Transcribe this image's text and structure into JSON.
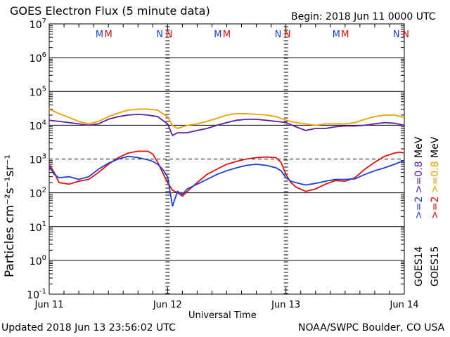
{
  "header": {
    "title": "GOES Electron Flux (5 minute data)",
    "begin": "Begin: 2018 Jun 11 0000 UTC"
  },
  "footer": {
    "updated": "Updated 2018 Jun 13 23:56:02 UTC",
    "credit": "NOAA/SWPC Boulder, CO USA"
  },
  "chart_data": {
    "type": "line",
    "title": "GOES Electron Flux (5 minute data)",
    "xlabel": "Universal Time",
    "ylabel": "Particles cm⁻²s⁻¹sr⁻¹",
    "y_scale": "log",
    "ylim": [
      0.1,
      10000000
    ],
    "xlim": [
      0,
      72
    ],
    "x_unit": "hours since 2018 Jun 11 0000 UTC",
    "x_ticks": [
      {
        "x": 0,
        "label": "Jun 11"
      },
      {
        "x": 24,
        "label": "Jun 12"
      },
      {
        "x": 48,
        "label": "Jun 13"
      },
      {
        "x": 72,
        "label": "Jun 14"
      }
    ],
    "y_ticks": [
      {
        "v": 10000000,
        "base": "10",
        "exp": "7"
      },
      {
        "v": 1000000,
        "base": "10",
        "exp": "6"
      },
      {
        "v": 100000,
        "base": "10",
        "exp": "5"
      },
      {
        "v": 10000,
        "base": "10",
        "exp": "4"
      },
      {
        "v": 1000,
        "base": "10",
        "exp": "3"
      },
      {
        "v": 100,
        "base": "10",
        "exp": "2"
      },
      {
        "v": 10,
        "base": "10",
        "exp": "1"
      },
      {
        "v": 1,
        "base": "10",
        "exp": "0"
      },
      {
        "v": 0.1,
        "base": "10",
        "exp": "-1"
      }
    ],
    "threshold": {
      "value": 1000,
      "style": "dashed"
    },
    "grid_lines": [
      100,
      10000,
      100000,
      1000000,
      10,
      1
    ],
    "markers": [
      {
        "x": 10.2,
        "label": "M",
        "color": "#1f3fd0"
      },
      {
        "x": 12.0,
        "label": "M",
        "color": "#e01010"
      },
      {
        "x": 22.4,
        "label": "N",
        "color": "#1f3fd0"
      },
      {
        "x": 24.3,
        "label": "N",
        "color": "#e01010"
      },
      {
        "x": 34.2,
        "label": "M",
        "color": "#1f3fd0"
      },
      {
        "x": 36.0,
        "label": "M",
        "color": "#e01010"
      },
      {
        "x": 46.4,
        "label": "N",
        "color": "#1f3fd0"
      },
      {
        "x": 48.3,
        "label": "N",
        "color": "#e01010"
      },
      {
        "x": 58.2,
        "label": "M",
        "color": "#1f3fd0"
      },
      {
        "x": 60.0,
        "label": "M",
        "color": "#e01010"
      },
      {
        "x": 70.4,
        "label": "N",
        "color": "#1f3fd0"
      },
      {
        "x": 72.3,
        "label": "N",
        "color": "#e01010"
      }
    ],
    "series": [
      {
        "name": ">=0.8 MeV GOES15",
        "color": "#f0a000",
        "x": [
          0,
          2,
          4,
          6,
          8,
          10,
          12,
          14,
          16,
          18,
          20,
          22,
          23,
          24,
          25,
          26,
          28,
          30,
          32,
          34,
          36,
          38,
          40,
          42,
          44,
          46,
          48,
          50,
          52,
          54,
          56,
          58,
          60,
          62,
          64,
          66,
          68,
          70,
          72
        ],
        "values": [
          30000,
          22000,
          17000,
          13000,
          11000,
          13000,
          18000,
          23000,
          28000,
          30000,
          30000,
          28000,
          22000,
          18000,
          10000,
          8000,
          10000,
          11000,
          13000,
          16000,
          20000,
          22000,
          22000,
          21000,
          20000,
          18000,
          14000,
          12000,
          11000,
          10000,
          11000,
          11000,
          11000,
          12000,
          15000,
          18000,
          20000,
          20000,
          17000
        ]
      },
      {
        "name": ">=0.8 MeV GOES14",
        "color": "#5a1e9e",
        "x": [
          0,
          2,
          4,
          6,
          8,
          10,
          12,
          14,
          16,
          18,
          20,
          22,
          23,
          24,
          25,
          26,
          28,
          30,
          32,
          34,
          36,
          38,
          40,
          42,
          44,
          46,
          48,
          50,
          52,
          54,
          56,
          58,
          60,
          62,
          64,
          66,
          68,
          70,
          72
        ],
        "values": [
          14000,
          13000,
          12000,
          11000,
          10000,
          11000,
          15000,
          18000,
          20000,
          21000,
          20000,
          18000,
          14000,
          11000,
          5000,
          6000,
          6000,
          7000,
          8000,
          10000,
          12000,
          14000,
          15000,
          15000,
          14000,
          13000,
          12000,
          9000,
          7000,
          8000,
          8000,
          9000,
          9500,
          9500,
          10000,
          11000,
          12000,
          11500,
          10000
        ]
      },
      {
        "name": ">=2 MeV GOES15",
        "color": "#e01010",
        "x": [
          0,
          1,
          2,
          4,
          6,
          8,
          10,
          12,
          14,
          16,
          18,
          20,
          21,
          22,
          23,
          24,
          25,
          26,
          27,
          28,
          30,
          32,
          34,
          36,
          38,
          40,
          42,
          44,
          46,
          47,
          48,
          49,
          50,
          52,
          54,
          56,
          58,
          60,
          62,
          64,
          66,
          68,
          70,
          71,
          72
        ],
        "values": [
          700,
          400,
          200,
          180,
          220,
          250,
          400,
          700,
          1100,
          1500,
          1700,
          1700,
          1400,
          800,
          400,
          200,
          120,
          100,
          80,
          110,
          200,
          350,
          500,
          700,
          850,
          1000,
          1100,
          1150,
          1100,
          800,
          350,
          200,
          150,
          110,
          130,
          180,
          230,
          220,
          280,
          500,
          800,
          1200,
          1500,
          1600,
          1500
        ]
      },
      {
        "name": ">=2 MeV GOES14",
        "color": "#1f3fd0",
        "x": [
          0,
          1,
          2,
          4,
          6,
          8,
          10,
          12,
          14,
          16,
          18,
          20,
          21,
          22,
          23,
          24,
          25,
          26,
          27,
          28,
          30,
          32,
          34,
          36,
          38,
          40,
          42,
          44,
          46,
          47,
          48,
          49,
          50,
          52,
          54,
          56,
          58,
          60,
          62,
          64,
          66,
          68,
          70,
          71,
          72
        ],
        "values": [
          600,
          350,
          280,
          300,
          250,
          300,
          500,
          750,
          1000,
          1200,
          1100,
          950,
          850,
          700,
          500,
          300,
          40,
          110,
          90,
          130,
          180,
          250,
          350,
          450,
          550,
          650,
          700,
          650,
          550,
          450,
          280,
          220,
          200,
          170,
          190,
          220,
          250,
          250,
          260,
          350,
          450,
          550,
          700,
          800,
          900
        ]
      }
    ],
    "legend": [
      {
        "text": ">=2",
        "color": "#1f3fd0"
      },
      {
        "text": ">=0.8",
        "color": "#5a1e9e"
      },
      {
        "text": "MeV",
        "color": "#000000"
      },
      {
        "text": ">=2",
        "color": "#e01010"
      },
      {
        "text": ">=0.8",
        "color": "#f0a000"
      },
      {
        "text": "MeV",
        "color": "#000000"
      },
      {
        "text": "GOES14",
        "color": "#000000"
      },
      {
        "text": "GOES15",
        "color": "#000000"
      }
    ]
  }
}
